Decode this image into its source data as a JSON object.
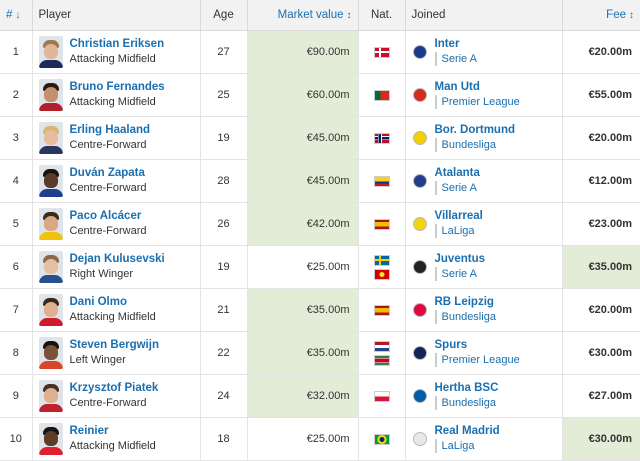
{
  "header": {
    "num": "#",
    "num_sort": "↓",
    "player": "Player",
    "age": "Age",
    "market_value": "Market value",
    "mv_sort": "↕",
    "nat": "Nat.",
    "joined": "Joined",
    "fee": "Fee",
    "fee_sort": "↕"
  },
  "rows": [
    {
      "num": "1",
      "name": "Christian Eriksen",
      "position": "Attacking Midfield",
      "age": "27",
      "value": "€90.00m",
      "value_hl": true,
      "nat": [
        {
          "name": "Denmark",
          "flag": "denmark"
        }
      ],
      "club": "Inter",
      "crest": "#1b3a8a",
      "league": "Serie A",
      "league_flag": "italy",
      "fee": "€20.00m",
      "fee_hl": false,
      "photo": {
        "skin": "#e0b899",
        "hair": "#a07850",
        "shirt": "#1e2a5a"
      }
    },
    {
      "num": "2",
      "name": "Bruno Fernandes",
      "position": "Attacking Midfield",
      "age": "25",
      "value": "€60.00m",
      "value_hl": true,
      "nat": [
        {
          "name": "Portugal",
          "flag": "portugal"
        }
      ],
      "club": "Man Utd",
      "crest": "#d22b1f",
      "league": "Premier League",
      "league_flag": "england",
      "fee": "€55.00m",
      "fee_hl": false,
      "photo": {
        "skin": "#c49070",
        "hair": "#2a1a10",
        "shirt": "#b0222a"
      }
    },
    {
      "num": "3",
      "name": "Erling Haaland",
      "position": "Centre-Forward",
      "age": "19",
      "value": "€45.00m",
      "value_hl": true,
      "nat": [
        {
          "name": "Norway",
          "flag": "norway"
        }
      ],
      "club": "Bor. Dortmund",
      "crest": "#f3d000",
      "league": "Bundesliga",
      "league_flag": "germany",
      "fee": "€20.00m",
      "fee_hl": false,
      "photo": {
        "skin": "#e8bca0",
        "hair": "#d8b670",
        "shirt": "#2a3560"
      }
    },
    {
      "num": "4",
      "name": "Duván Zapata",
      "position": "Centre-Forward",
      "age": "28",
      "value": "€45.00m",
      "value_hl": true,
      "nat": [
        {
          "name": "Colombia",
          "flag": "colombia"
        }
      ],
      "club": "Atalanta",
      "crest": "#1f3f8c",
      "league": "Serie A",
      "league_flag": "italy",
      "fee": "€12.00m",
      "fee_hl": false,
      "photo": {
        "skin": "#5a3a28",
        "hair": "#1a1210",
        "shirt": "#1f3f8c"
      }
    },
    {
      "num": "5",
      "name": "Paco Alcácer",
      "position": "Centre-Forward",
      "age": "26",
      "value": "€42.00m",
      "value_hl": true,
      "nat": [
        {
          "name": "Spain",
          "flag": "spain"
        }
      ],
      "club": "Villarreal",
      "crest": "#f1d410",
      "league": "LaLiga",
      "league_flag": "spain",
      "fee": "€23.00m",
      "fee_hl": false,
      "photo": {
        "skin": "#d8a884",
        "hair": "#3a2a1a",
        "shirt": "#f0c20a"
      }
    },
    {
      "num": "6",
      "name": "Dejan Kulusevski",
      "position": "Right Winger",
      "age": "19",
      "value": "€25.00m",
      "value_hl": false,
      "nat": [
        {
          "name": "Sweden",
          "flag": "sweden"
        },
        {
          "name": "North Macedonia",
          "flag": "macedonia"
        }
      ],
      "club": "Juventus",
      "crest": "#222222",
      "league": "Serie A",
      "league_flag": "italy",
      "fee": "€35.00m",
      "fee_hl": true,
      "photo": {
        "skin": "#e4c0a0",
        "hair": "#8a6a4a",
        "shirt": "#2a4f8f"
      }
    },
    {
      "num": "7",
      "name": "Dani Olmo",
      "position": "Attacking Midfield",
      "age": "21",
      "value": "€35.00m",
      "value_hl": true,
      "nat": [
        {
          "name": "Spain",
          "flag": "spain"
        }
      ],
      "club": "RB Leipzig",
      "crest": "#dd0741",
      "league": "Bundesliga",
      "league_flag": "germany",
      "fee": "€20.00m",
      "fee_hl": false,
      "photo": {
        "skin": "#e0b090",
        "hair": "#3a2818",
        "shirt": "#d01a2a"
      }
    },
    {
      "num": "8",
      "name": "Steven Bergwijn",
      "position": "Left Winger",
      "age": "22",
      "value": "€35.00m",
      "value_hl": true,
      "nat": [
        {
          "name": "Netherlands",
          "flag": "netherlands"
        },
        {
          "name": "Suriname",
          "flag": "suriname"
        }
      ],
      "club": "Spurs",
      "crest": "#132257",
      "league": "Premier League",
      "league_flag": "england",
      "fee": "€30.00m",
      "fee_hl": false,
      "photo": {
        "skin": "#7a5238",
        "hair": "#1a1210",
        "shirt": "#d8452a"
      }
    },
    {
      "num": "9",
      "name": "Krzysztof Piatek",
      "position": "Centre-Forward",
      "age": "24",
      "value": "€32.00m",
      "value_hl": true,
      "nat": [
        {
          "name": "Poland",
          "flag": "poland"
        }
      ],
      "club": "Hertha BSC",
      "crest": "#005ca9",
      "league": "Bundesliga",
      "league_flag": "germany",
      "fee": "€27.00m",
      "fee_hl": false,
      "photo": {
        "skin": "#dcb090",
        "hair": "#4a3020",
        "shirt": "#c02030"
      }
    },
    {
      "num": "10",
      "name": "Reinier",
      "position": "Attacking Midfield",
      "age": "18",
      "value": "€25.00m",
      "value_hl": false,
      "nat": [
        {
          "name": "Brazil",
          "flag": "brazil"
        }
      ],
      "club": "Real Madrid",
      "crest": "#e8e8e8",
      "league": "LaLiga",
      "league_flag": "spain",
      "fee": "€30.00m",
      "fee_hl": true,
      "photo": {
        "skin": "#5e3c28",
        "hair": "#1a1210",
        "shirt": "#e02030"
      }
    }
  ]
}
